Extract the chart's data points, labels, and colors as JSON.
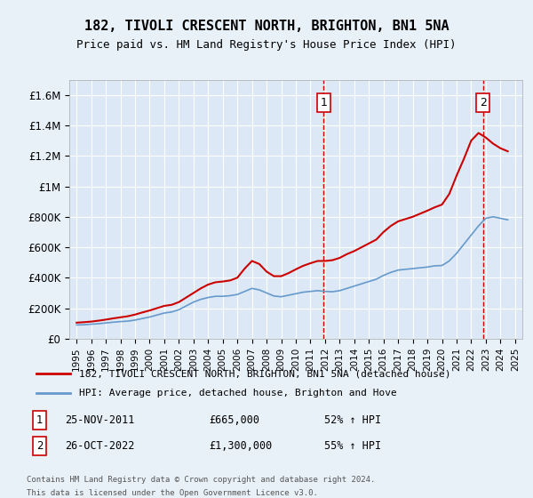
{
  "title": "182, TIVOLI CRESCENT NORTH, BRIGHTON, BN1 5NA",
  "subtitle": "Price paid vs. HM Land Registry's House Price Index (HPI)",
  "background_color": "#e8f0f8",
  "plot_bg_color": "#dce8f5",
  "legend_line1": "182, TIVOLI CRESCENT NORTH, BRIGHTON, BN1 5NA (detached house)",
  "legend_line2": "HPI: Average price, detached house, Brighton and Hove",
  "footer": "Contains HM Land Registry data © Crown copyright and database right 2024.\nThis data is licensed under the Open Government Licence v3.0.",
  "annotation1": {
    "label": "1",
    "date": "25-NOV-2011",
    "price": "£665,000",
    "pct": "52% ↑ HPI",
    "x": 2011.9
  },
  "annotation2": {
    "label": "2",
    "date": "26-OCT-2022",
    "price": "£1,300,000",
    "pct": "55% ↑ HPI",
    "x": 2022.8
  },
  "hpi_years": [
    1995,
    1995.5,
    1996,
    1996.5,
    1997,
    1997.5,
    1998,
    1998.5,
    1999,
    1999.5,
    2000,
    2000.5,
    2001,
    2001.5,
    2002,
    2002.5,
    2003,
    2003.5,
    2004,
    2004.5,
    2005,
    2005.5,
    2006,
    2006.5,
    2007,
    2007.5,
    2008,
    2008.5,
    2009,
    2009.5,
    2010,
    2010.5,
    2011,
    2011.5,
    2012,
    2012.5,
    2013,
    2013.5,
    2014,
    2014.5,
    2015,
    2015.5,
    2016,
    2016.5,
    2017,
    2017.5,
    2018,
    2018.5,
    2019,
    2019.5,
    2020,
    2020.5,
    2021,
    2021.5,
    2022,
    2022.5,
    2023,
    2023.5,
    2024,
    2024.5
  ],
  "hpi_values": [
    90000,
    91000,
    95000,
    98000,
    103000,
    108000,
    112000,
    115000,
    122000,
    132000,
    142000,
    155000,
    168000,
    175000,
    190000,
    215000,
    240000,
    258000,
    270000,
    278000,
    278000,
    282000,
    290000,
    310000,
    330000,
    320000,
    300000,
    280000,
    275000,
    285000,
    295000,
    305000,
    310000,
    315000,
    310000,
    308000,
    315000,
    330000,
    345000,
    360000,
    375000,
    390000,
    415000,
    435000,
    450000,
    455000,
    460000,
    465000,
    470000,
    478000,
    480000,
    510000,
    560000,
    620000,
    680000,
    740000,
    790000,
    800000,
    790000,
    780000
  ],
  "price_years": [
    1995,
    1995.5,
    1996,
    1996.5,
    1997,
    1997.5,
    1998,
    1998.5,
    1999,
    1999.5,
    2000,
    2000.5,
    2001,
    2001.5,
    2002,
    2002.5,
    2003,
    2003.5,
    2004,
    2004.5,
    2005,
    2005.5,
    2006,
    2006.5,
    2007,
    2007.5,
    2008,
    2008.5,
    2009,
    2009.5,
    2010,
    2010.5,
    2011,
    2011.5,
    2012,
    2012.5,
    2013,
    2013.5,
    2014,
    2014.5,
    2015,
    2015.5,
    2016,
    2016.5,
    2017,
    2017.5,
    2018,
    2018.5,
    2019,
    2019.5,
    2020,
    2020.5,
    2021,
    2021.5,
    2022,
    2022.5,
    2023,
    2023.5,
    2024,
    2024.5
  ],
  "price_values": [
    105000,
    108000,
    112000,
    118000,
    125000,
    133000,
    140000,
    147000,
    158000,
    172000,
    185000,
    200000,
    215000,
    222000,
    240000,
    270000,
    300000,
    330000,
    355000,
    370000,
    375000,
    382000,
    400000,
    460000,
    510000,
    490000,
    440000,
    410000,
    410000,
    430000,
    455000,
    478000,
    495000,
    510000,
    510000,
    515000,
    530000,
    555000,
    575000,
    600000,
    625000,
    650000,
    700000,
    740000,
    770000,
    785000,
    800000,
    820000,
    840000,
    862000,
    880000,
    950000,
    1070000,
    1180000,
    1300000,
    1350000,
    1320000,
    1280000,
    1250000,
    1230000
  ],
  "hpi_color": "#6699cc",
  "price_color": "#cc0000",
  "dashed_color": "#cc0000",
  "ylim": [
    0,
    1700000
  ],
  "yticks": [
    0,
    200000,
    400000,
    600000,
    800000,
    1000000,
    1200000,
    1400000,
    1600000
  ],
  "ytick_labels": [
    "£0",
    "£200K",
    "£400K",
    "£600K",
    "£800K",
    "£1M",
    "£1.2M",
    "£1.4M",
    "£1.6M"
  ],
  "xlim": [
    1994.5,
    2025.5
  ],
  "xticks": [
    1995,
    1996,
    1997,
    1998,
    1999,
    2000,
    2001,
    2002,
    2003,
    2004,
    2005,
    2006,
    2007,
    2008,
    2009,
    2010,
    2011,
    2012,
    2013,
    2014,
    2015,
    2016,
    2017,
    2018,
    2019,
    2020,
    2021,
    2022,
    2023,
    2024,
    2025
  ]
}
